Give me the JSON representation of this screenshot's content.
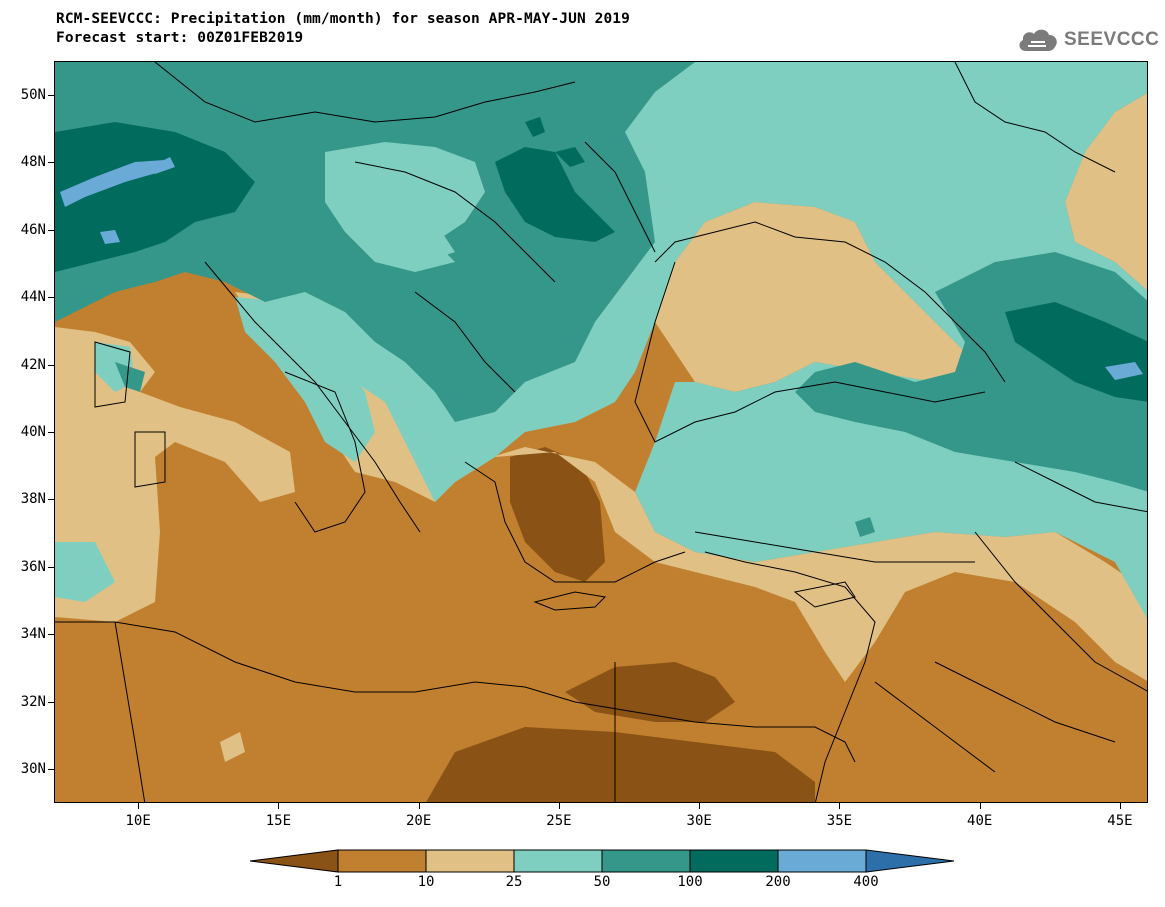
{
  "title": {
    "line1": "RCM-SEEVCCC: Precipitation (mm/month) for season APR-MAY-JUN 2019",
    "line2": "Forecast start: 00Z01FEB2019"
  },
  "logo": {
    "text": "SEEVCCC",
    "icon": "cloud-icon"
  },
  "map": {
    "extent_lon": [
      7,
      46
    ],
    "extent_lat": [
      29,
      51
    ],
    "lat_labels": [
      "50N",
      "48N",
      "46N",
      "44N",
      "42N",
      "40N",
      "38N",
      "36N",
      "34N",
      "32N",
      "30N"
    ],
    "lon_labels": [
      "10E",
      "15E",
      "20E",
      "25E",
      "30E",
      "35E",
      "40E",
      "45E"
    ]
  },
  "legend": {
    "levels": [
      "1",
      "10",
      "25",
      "50",
      "100",
      "200",
      "400"
    ],
    "colors": [
      "#8b5216",
      "#c1802f",
      "#e0c084",
      "#7ecfc0",
      "#35968a",
      "#016c5d",
      "#6aaad6",
      "#2d6fa8"
    ]
  }
}
